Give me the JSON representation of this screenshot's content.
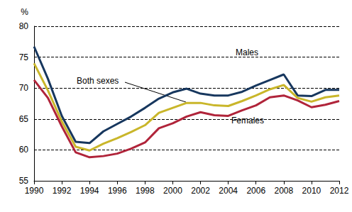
{
  "chart_data": {
    "type": "line",
    "y_label": "%",
    "categories": [
      "1990",
      null,
      "1992",
      null,
      "1994",
      null,
      "1996",
      null,
      "1998",
      null,
      "2000",
      null,
      "2002",
      null,
      "2004",
      null,
      "2006",
      null,
      "2008",
      null,
      "2010",
      null,
      "2012"
    ],
    "series": [
      {
        "name": "Males",
        "color": "#17375e",
        "values": [
          76.7,
          71.5,
          65.5,
          61.3,
          61.1,
          63.0,
          64.2,
          65.4,
          66.8,
          68.3,
          69.3,
          69.9,
          69.1,
          68.8,
          68.8,
          69.4,
          70.4,
          71.3,
          72.2,
          68.8,
          68.7,
          69.7,
          69.7
        ]
      },
      {
        "name": "Both sexes",
        "color": "#c9b62a",
        "values": [
          74.0,
          69.6,
          64.6,
          60.5,
          59.9,
          61.0,
          61.9,
          62.9,
          64.0,
          66.0,
          66.8,
          67.6,
          67.6,
          67.2,
          67.1,
          67.9,
          68.8,
          69.8,
          70.5,
          68.4,
          67.8,
          68.5,
          68.8
        ]
      },
      {
        "name": "Females",
        "color": "#b0243a",
        "values": [
          71.3,
          68.4,
          63.8,
          59.6,
          58.8,
          59.0,
          59.4,
          60.2,
          61.2,
          63.5,
          64.3,
          65.4,
          66.1,
          65.6,
          65.5,
          66.4,
          67.2,
          68.5,
          68.8,
          68.0,
          66.9,
          67.3,
          67.9
        ]
      }
    ],
    "ylim": [
      55,
      80
    ],
    "yticks": [
      55,
      60,
      65,
      70,
      75,
      80
    ],
    "grid": true
  }
}
